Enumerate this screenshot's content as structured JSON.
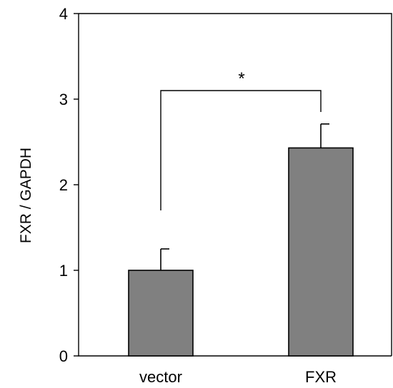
{
  "chart_data": {
    "type": "bar",
    "categories": [
      "vector",
      "FXR"
    ],
    "values": [
      1.0,
      2.43
    ],
    "errors": [
      0.25,
      0.28
    ],
    "ylabel": "FXR / GAPDH",
    "xlabel": "",
    "ylim": [
      0,
      4
    ],
    "yticks": [
      "0",
      "1",
      "2",
      "3",
      "4"
    ],
    "bar_color": "#808080",
    "significance": {
      "label": "*",
      "from": "vector",
      "to": "FXR",
      "y": 3.1
    },
    "grid": false
  }
}
